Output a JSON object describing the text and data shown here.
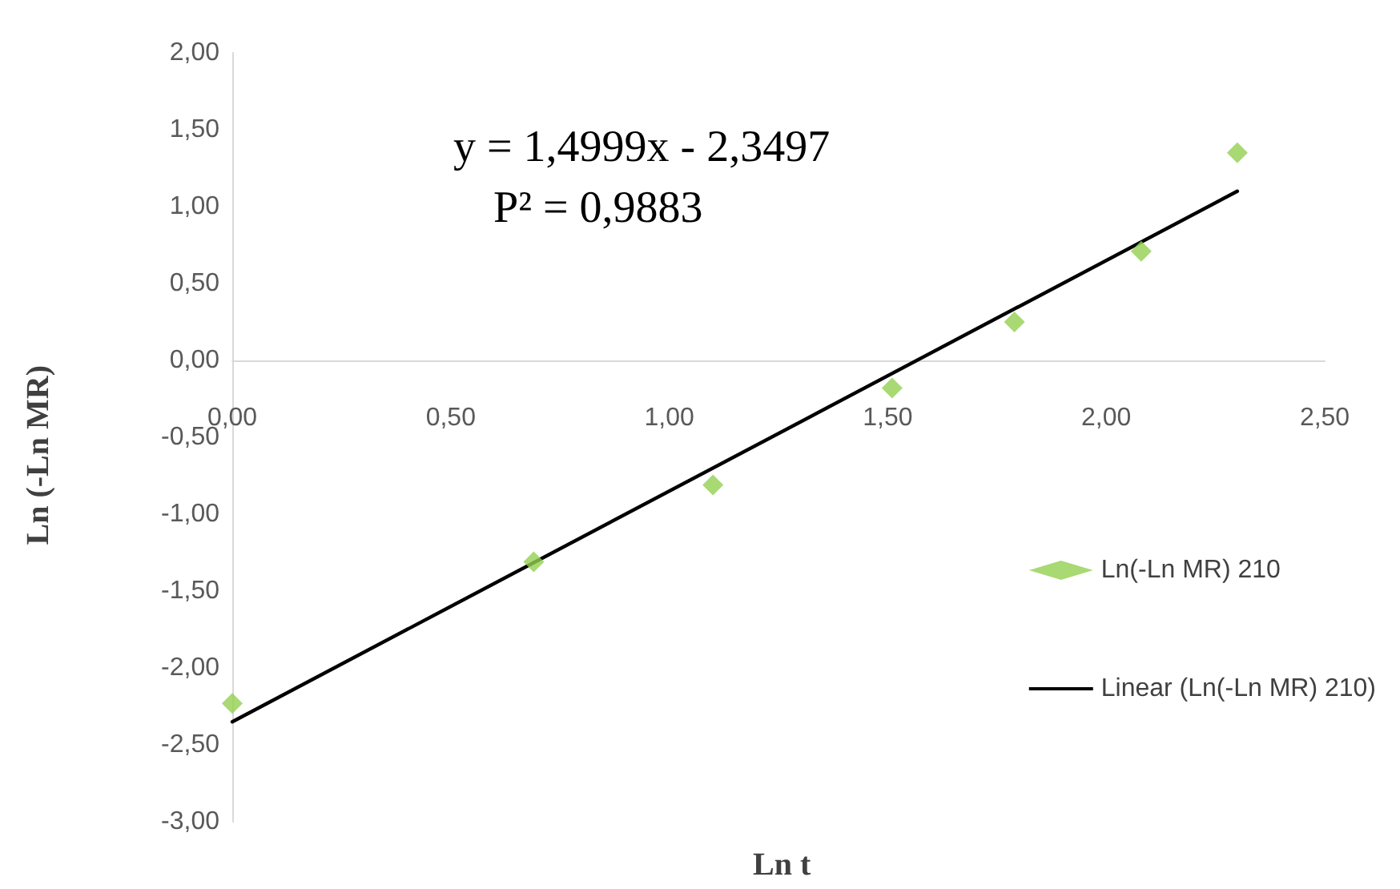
{
  "chart_data": {
    "type": "scatter",
    "xlabel": "Ln t",
    "ylabel": "Ln (-Ln MR)",
    "annotations": [
      "y = 1,4999x - 2,3497",
      "P² = 0,9883"
    ],
    "series": [
      {
        "name": "Ln(-Ln MR) 210",
        "color": "#92d050",
        "marker": "diamond",
        "x": [
          0,
          0.69,
          1.1,
          1.51,
          1.79,
          2.08,
          2.3
        ],
        "values": [
          -2.23,
          -1.31,
          -0.81,
          -0.18,
          0.25,
          0.71,
          1.35
        ]
      },
      {
        "name": "Linear (Ln(-Ln MR) 210)",
        "type": "line",
        "color": "#000000",
        "marker": "none",
        "line_style": "solid",
        "x": [
          0,
          2.3
        ],
        "values": [
          -2.35,
          1.1
        ]
      }
    ],
    "xlim": [
      0,
      2.5
    ],
    "ylim": [
      -3,
      2
    ],
    "xticks": [
      {
        "value": 0,
        "label": "0,00"
      },
      {
        "value": 0.5,
        "label": "0,50"
      },
      {
        "value": 1,
        "label": "1,00"
      },
      {
        "value": 1.5,
        "label": "1,50"
      },
      {
        "value": 2,
        "label": "2,00"
      },
      {
        "value": 2.5,
        "label": "2,50"
      }
    ],
    "yticks": [
      {
        "value": -3,
        "label": "-3,00"
      },
      {
        "value": -2.5,
        "label": "-2,50"
      },
      {
        "value": -2,
        "label": "-2,00"
      },
      {
        "value": -1.5,
        "label": "-1,50"
      },
      {
        "value": -1,
        "label": "-1,00"
      },
      {
        "value": -0.5,
        "label": "-0,50"
      },
      {
        "value": 0,
        "label": "0,00"
      },
      {
        "value": 0.5,
        "label": "0,50"
      },
      {
        "value": 1,
        "label": "1,00"
      },
      {
        "value": 1.5,
        "label": "1,50"
      },
      {
        "value": 2,
        "label": "2,00"
      }
    ],
    "grid": false,
    "legend": "right"
  }
}
